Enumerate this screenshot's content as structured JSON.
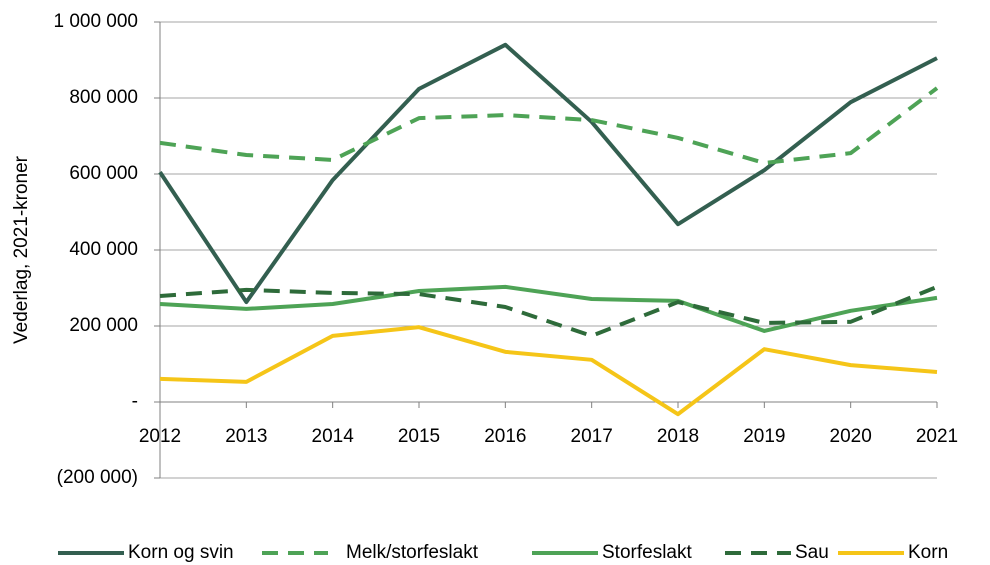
{
  "chart_data": {
    "type": "line",
    "y_label": "Vederlag, 2021-kroner",
    "categories": [
      "2012",
      "2013",
      "2014",
      "2015",
      "2016",
      "2017",
      "2018",
      "2019",
      "2020",
      "2021"
    ],
    "ylim": [
      -200000,
      1000000
    ],
    "yticks": [
      {
        "value": -200000,
        "label": "(200 000)"
      },
      {
        "value": 0,
        "label": "-"
      },
      {
        "value": 200000,
        "label": "200 000"
      },
      {
        "value": 400000,
        "label": "400 000"
      },
      {
        "value": 600000,
        "label": "600 000"
      },
      {
        "value": 800000,
        "label": "800 000"
      },
      {
        "value": 1000000,
        "label": "1 000 000"
      }
    ],
    "grid": true,
    "legend": "bottom",
    "series": [
      {
        "name": "Korn og svin",
        "color": "#335f50",
        "dash": false,
        "values": [
          605000,
          263000,
          584000,
          824000,
          940000,
          737000,
          468000,
          610000,
          789000,
          905000
        ]
      },
      {
        "name": "Melk/storfeslakt",
        "color": "#4ea356",
        "dash": true,
        "values": [
          682000,
          650000,
          637000,
          747000,
          755000,
          742000,
          695000,
          629000,
          655000,
          826000
        ]
      },
      {
        "name": "Storfeslakt",
        "color": "#4ea356",
        "dash": false,
        "values": [
          258000,
          245000,
          258000,
          292000,
          303000,
          271000,
          266000,
          187000,
          240000,
          274000
        ]
      },
      {
        "name": "Sau",
        "color": "#2e6b3a",
        "dash": true,
        "values": [
          279000,
          295000,
          287000,
          284000,
          250000,
          174000,
          263000,
          208000,
          211000,
          303000
        ]
      },
      {
        "name": "Korn",
        "color": "#f5c518",
        "dash": false,
        "values": [
          61000,
          53000,
          174000,
          197000,
          132000,
          111000,
          -32000,
          139000,
          97000,
          79000
        ]
      }
    ]
  }
}
